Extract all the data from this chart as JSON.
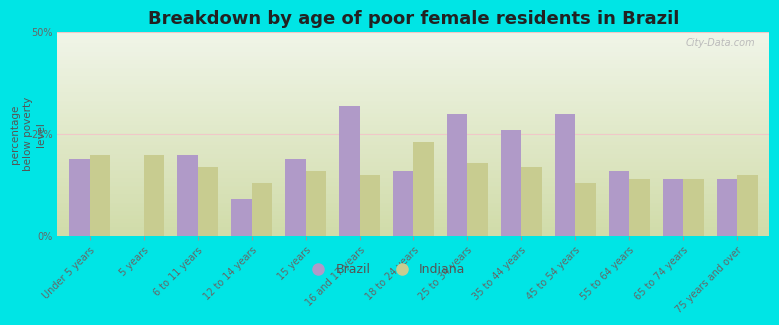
{
  "title": "Breakdown by age of poor female residents in Brazil",
  "ylabel": "percentage\nbelow poverty\nlevel",
  "categories": [
    "Under 5 years",
    "5 years",
    "6 to 11 years",
    "12 to 14 years",
    "15 years",
    "16 and 17 years",
    "18 to 24 years",
    "25 to 34 years",
    "35 to 44 years",
    "45 to 54 years",
    "55 to 64 years",
    "65 to 74 years",
    "75 years and over"
  ],
  "brazil_values": [
    19.0,
    0.0,
    20.0,
    9.0,
    19.0,
    32.0,
    16.0,
    30.0,
    26.0,
    30.0,
    16.0,
    14.0,
    14.0
  ],
  "indiana_values": [
    20.0,
    20.0,
    17.0,
    13.0,
    16.0,
    15.0,
    23.0,
    18.0,
    17.0,
    13.0,
    14.0,
    14.0,
    15.0
  ],
  "brazil_color": "#b09ac8",
  "indiana_color": "#c8cc90",
  "background_outer": "#00e5e5",
  "background_plot": "#dde8cc",
  "ylim": [
    0,
    50
  ],
  "yticks": [
    0,
    25,
    50
  ],
  "ytick_labels": [
    "0%",
    "25%",
    "50%"
  ],
  "bar_width": 0.38,
  "title_fontsize": 13,
  "axis_label_fontsize": 7.5,
  "tick_fontsize": 7,
  "legend_fontsize": 9
}
